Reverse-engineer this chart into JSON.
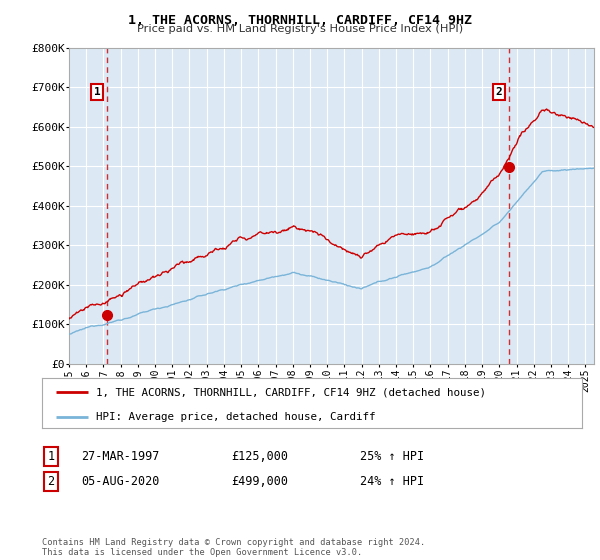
{
  "title": "1, THE ACORNS, THORNHILL, CARDIFF, CF14 9HZ",
  "subtitle": "Price paid vs. HM Land Registry's House Price Index (HPI)",
  "ylim": [
    0,
    800000
  ],
  "yticks": [
    0,
    100000,
    200000,
    300000,
    400000,
    500000,
    600000,
    700000,
    800000
  ],
  "ytick_labels": [
    "£0",
    "£100K",
    "£200K",
    "£300K",
    "£400K",
    "£500K",
    "£600K",
    "£700K",
    "£800K"
  ],
  "hpi_color": "#7ab4d8",
  "price_color": "#cc0000",
  "marker1_year": 1997.23,
  "marker1_price": 125000,
  "marker2_year": 2020.59,
  "marker2_price": 499000,
  "legend_line1": "1, THE ACORNS, THORNHILL, CARDIFF, CF14 9HZ (detached house)",
  "legend_line2": "HPI: Average price, detached house, Cardiff",
  "table_row1": [
    "1",
    "27-MAR-1997",
    "£125,000",
    "25% ↑ HPI"
  ],
  "table_row2": [
    "2",
    "05-AUG-2020",
    "£499,000",
    "24% ↑ HPI"
  ],
  "footer": "Contains HM Land Registry data © Crown copyright and database right 2024.\nThis data is licensed under the Open Government Licence v3.0.",
  "plot_bg_color": "#dce9f5",
  "fig_bg_color": "#ffffff",
  "grid_color": "#ffffff",
  "dashed_line_color": "#cc0000",
  "annotation_box_color": "#cc0000"
}
